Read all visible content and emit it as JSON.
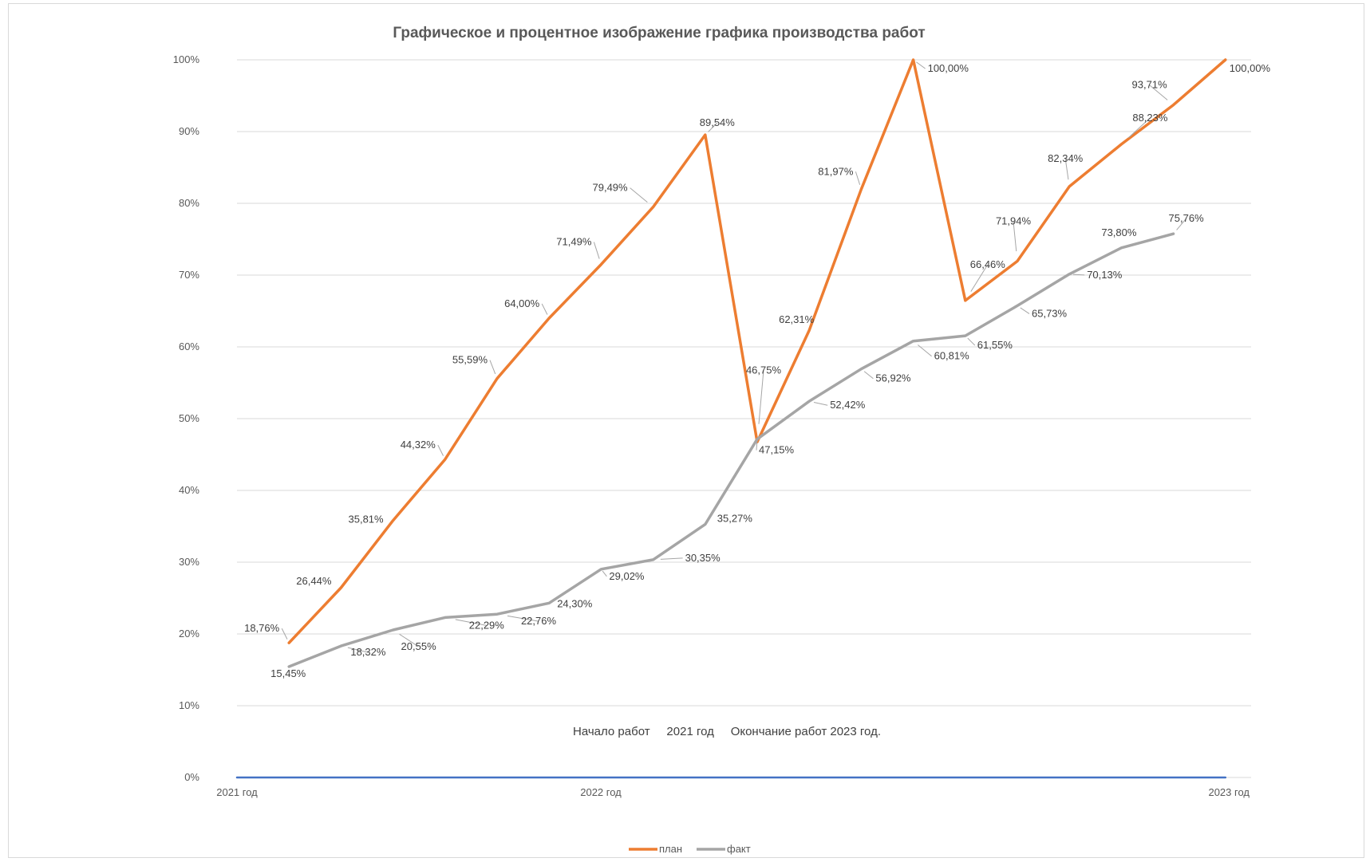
{
  "chart_data": {
    "type": "line",
    "title": "Графическое и процентное изображение графика производства работ",
    "y_ticks": [
      "0%",
      "10%",
      "20%",
      "30%",
      "40%",
      "50%",
      "60%",
      "70%",
      "80%",
      "90%",
      "100%"
    ],
    "ylim": [
      0,
      100
    ],
    "x_labels": [
      "2021 год",
      "2022 год",
      "2023 год"
    ],
    "grid": true,
    "legend_position": "bottom",
    "annotation": "Начало работ     2021 год     Окончание работ 2023 год.",
    "series": [
      {
        "name": "план",
        "color": "#ED7D31",
        "x_index": [
          1,
          2,
          3,
          4,
          5,
          6,
          7,
          8,
          9,
          10,
          11,
          12,
          13,
          14,
          15,
          16,
          17,
          18,
          19
        ],
        "values": [
          18.76,
          26.44,
          35.81,
          44.32,
          55.59,
          64.0,
          71.49,
          79.49,
          89.54,
          46.75,
          62.31,
          81.97,
          100.0,
          66.46,
          71.94,
          82.34,
          88.23,
          93.71,
          100.0
        ],
        "labels": [
          "18,76%",
          "26,44%",
          "35,81%",
          "44,32%",
          "55,59%",
          "64,00%",
          "71,49%",
          "79,49%",
          "89,54%",
          "46,75%",
          "62,31%",
          "81,97%",
          "100,00%",
          "66,46%",
          "71,94%",
          "82,34%",
          "88,23%",
          "93,71%",
          "100,00%"
        ]
      },
      {
        "name": "факт",
        "color": "#A5A5A5",
        "x_index": [
          1,
          2,
          3,
          4,
          5,
          6,
          7,
          8,
          9,
          10,
          11,
          12,
          13,
          14,
          15,
          16,
          17,
          18
        ],
        "values": [
          15.45,
          18.32,
          20.55,
          22.29,
          22.76,
          24.3,
          29.02,
          30.35,
          35.27,
          47.15,
          52.42,
          56.92,
          60.81,
          61.55,
          65.73,
          70.13,
          73.8,
          75.76
        ],
        "labels": [
          "15,45%",
          "18,32%",
          "20,55%",
          "22,29%",
          "22,76%",
          "24,30%",
          "29,02%",
          "30,35%",
          "35,27%",
          "47,15%",
          "52,42%",
          "56,92%",
          "60,81%",
          "61,55%",
          "65,73%",
          "70,13%",
          "73,80%",
          "75,76%"
        ]
      },
      {
        "name": "",
        "color": "#4472C4",
        "x_index": [
          0,
          19
        ],
        "values": [
          0,
          0
        ],
        "labels": []
      }
    ]
  }
}
